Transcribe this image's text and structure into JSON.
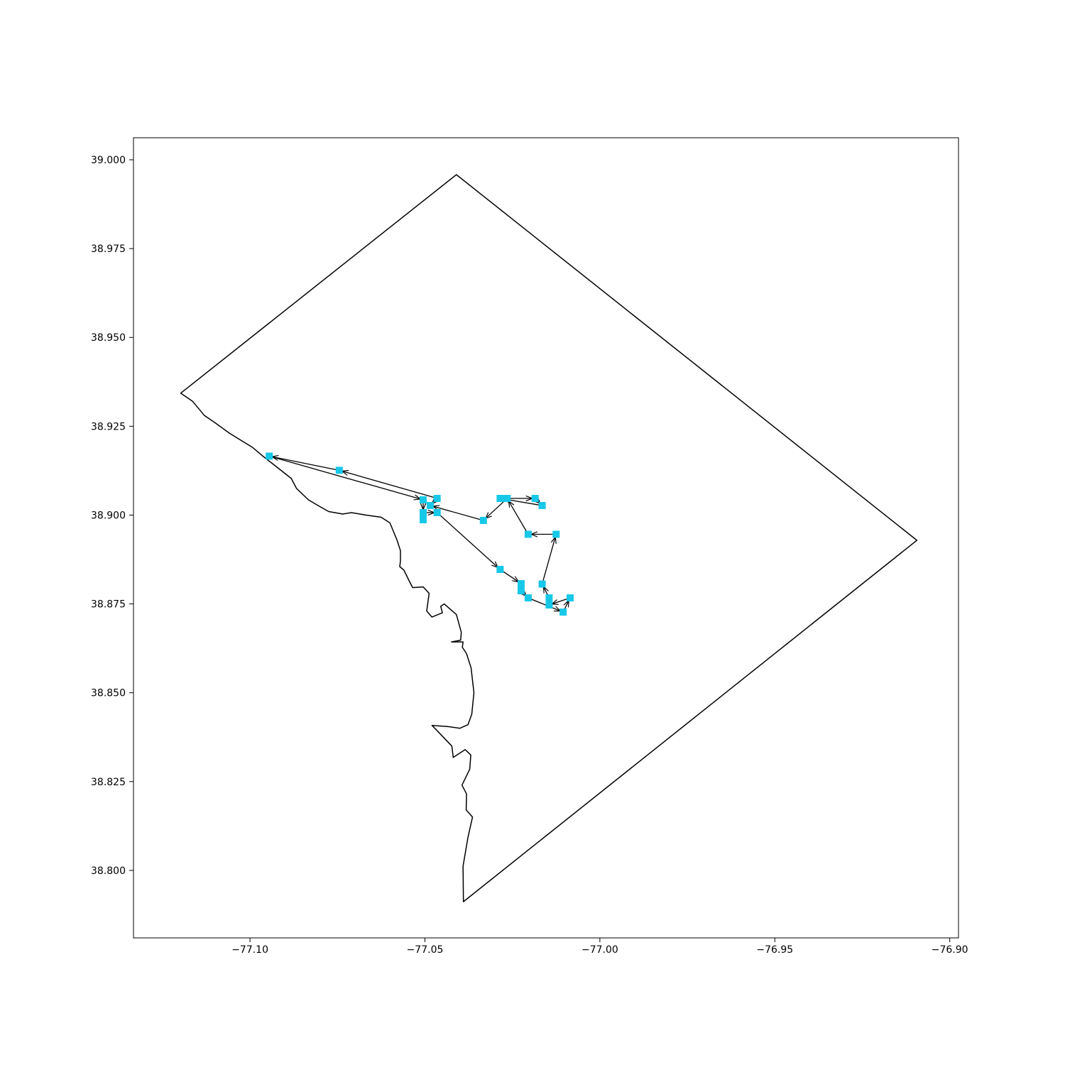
{
  "chart_data": {
    "type": "scatter",
    "title": "",
    "xlabel": "",
    "ylabel": "",
    "xlim": [
      -77.1333,
      -76.8975
    ],
    "ylim": [
      38.781,
      39.0062
    ],
    "grid": false,
    "legend": "none",
    "x_ticks": [
      {
        "value": -77.1,
        "label": "−77.10"
      },
      {
        "value": -77.05,
        "label": "−77.05"
      },
      {
        "value": -77.0,
        "label": "−77.00"
      },
      {
        "value": -76.95,
        "label": "−76.95"
      },
      {
        "value": -76.9,
        "label": "−76.90"
      }
    ],
    "y_ticks": [
      {
        "value": 39.0,
        "label": "39.000"
      },
      {
        "value": 38.975,
        "label": "38.975"
      },
      {
        "value": 38.95,
        "label": "38.950"
      },
      {
        "value": 38.925,
        "label": "38.925"
      },
      {
        "value": 38.9,
        "label": "38.900"
      },
      {
        "value": 38.875,
        "label": "38.875"
      },
      {
        "value": 38.85,
        "label": "38.850"
      },
      {
        "value": 38.825,
        "label": "38.825"
      },
      {
        "value": 38.8,
        "label": "38.800"
      }
    ],
    "boundary_polygon": [
      [
        -77.1198,
        38.9343
      ],
      [
        -77.041,
        38.9958
      ],
      [
        -76.9094,
        38.8929
      ],
      [
        -77.039,
        38.7912
      ],
      [
        -77.0391,
        38.8012
      ],
      [
        -77.0377,
        38.8093
      ],
      [
        -77.0364,
        38.815
      ],
      [
        -77.0382,
        38.817
      ],
      [
        -77.0381,
        38.8215
      ],
      [
        -77.0394,
        38.824
      ],
      [
        -77.0372,
        38.8285
      ],
      [
        -77.0369,
        38.8325
      ],
      [
        -77.0385,
        38.834
      ],
      [
        -77.0419,
        38.8318
      ],
      [
        -77.0423,
        38.835
      ],
      [
        -77.0467,
        38.8395
      ],
      [
        -77.048,
        38.8408
      ],
      [
        -77.0436,
        38.8405
      ],
      [
        -77.04,
        38.84
      ],
      [
        -77.0377,
        38.841
      ],
      [
        -77.0366,
        38.844
      ],
      [
        -77.036,
        38.85
      ],
      [
        -77.0368,
        38.857
      ],
      [
        -77.0381,
        38.861
      ],
      [
        -77.0393,
        38.8628
      ],
      [
        -77.0391,
        38.8643
      ],
      [
        -77.0424,
        38.8643
      ],
      [
        -77.0398,
        38.8648
      ],
      [
        -77.0396,
        38.867
      ],
      [
        -77.041,
        38.872
      ],
      [
        -77.0445,
        38.875
      ],
      [
        -77.0455,
        38.8743
      ],
      [
        -77.045,
        38.8725
      ],
      [
        -77.048,
        38.8713
      ],
      [
        -77.0495,
        38.873
      ],
      [
        -77.0488,
        38.878
      ],
      [
        -77.0505,
        38.8798
      ],
      [
        -77.0535,
        38.8796
      ],
      [
        -77.0545,
        38.8815
      ],
      [
        -77.056,
        38.8845
      ],
      [
        -77.0572,
        38.8855
      ],
      [
        -77.057,
        38.887
      ],
      [
        -77.057,
        38.89
      ],
      [
        -77.058,
        38.893
      ],
      [
        -77.06,
        38.8978
      ],
      [
        -77.0625,
        38.8994
      ],
      [
        -77.0668,
        38.9
      ],
      [
        -77.071,
        38.9007
      ],
      [
        -77.0735,
        38.9003
      ],
      [
        -77.0775,
        38.901
      ],
      [
        -77.0802,
        38.9025
      ],
      [
        -77.0833,
        38.9043
      ],
      [
        -77.0867,
        38.9075
      ],
      [
        -77.0882,
        38.9103
      ],
      [
        -77.0923,
        38.9135
      ],
      [
        -77.0962,
        38.9165
      ],
      [
        -77.0992,
        38.919
      ],
      [
        -77.1058,
        38.923
      ],
      [
        -77.11,
        38.926
      ],
      [
        -77.113,
        38.928
      ],
      [
        -77.1164,
        38.932
      ],
      [
        -77.1198,
        38.9343
      ]
    ],
    "stops": [
      [
        -77.0945,
        38.9166
      ],
      [
        -77.0745,
        38.9126
      ],
      [
        -77.0465,
        38.9047
      ],
      [
        -77.0505,
        38.9043
      ],
      [
        -77.0485,
        38.9027
      ],
      [
        -77.0505,
        38.9007
      ],
      [
        -77.0505,
        38.8987
      ],
      [
        -77.0465,
        38.9007
      ],
      [
        -77.0285,
        38.8847
      ],
      [
        -77.0225,
        38.8807
      ],
      [
        -77.0225,
        38.8787
      ],
      [
        -77.0205,
        38.8767
      ],
      [
        -77.0145,
        38.8767
      ],
      [
        -77.0145,
        38.8747
      ],
      [
        -77.0105,
        38.8727
      ],
      [
        -77.0085,
        38.8767
      ],
      [
        -77.0165,
        38.8806
      ],
      [
        -77.0125,
        38.8946
      ],
      [
        -77.0205,
        38.8946
      ],
      [
        -77.0265,
        38.9047
      ],
      [
        -77.0185,
        38.9047
      ],
      [
        -77.0165,
        38.9027
      ],
      [
        -77.0285,
        38.9047
      ],
      [
        -77.0333,
        38.8985
      ]
    ],
    "route_segments": [
      [
        [
          -77.0745,
          38.9126
        ],
        [
          -77.0945,
          38.9166
        ]
      ],
      [
        [
          -77.0465,
          38.9047
        ],
        [
          -77.0745,
          38.9126
        ]
      ],
      [
        [
          -77.0945,
          38.9166
        ],
        [
          -77.0505,
          38.9043
        ]
      ],
      [
        [
          -77.0465,
          38.9047
        ],
        [
          -77.0485,
          38.9027
        ]
      ],
      [
        [
          -77.0505,
          38.9043
        ],
        [
          -77.0505,
          38.9007
        ]
      ],
      [
        [
          -77.0505,
          38.9007
        ],
        [
          -77.0505,
          38.8987
        ]
      ],
      [
        [
          -77.0505,
          38.9007
        ],
        [
          -77.0465,
          38.9007
        ]
      ],
      [
        [
          -77.0465,
          38.9007
        ],
        [
          -77.0285,
          38.8847
        ]
      ],
      [
        [
          -77.0285,
          38.8847
        ],
        [
          -77.0225,
          38.8807
        ]
      ],
      [
        [
          -77.0225,
          38.8807
        ],
        [
          -77.0225,
          38.8787
        ]
      ],
      [
        [
          -77.0225,
          38.8787
        ],
        [
          -77.0205,
          38.8767
        ]
      ],
      [
        [
          -77.0205,
          38.8767
        ],
        [
          -77.0105,
          38.8727
        ]
      ],
      [
        [
          -77.0145,
          38.8747
        ],
        [
          -77.0145,
          38.8767
        ]
      ],
      [
        [
          -77.0145,
          38.8767
        ],
        [
          -77.0165,
          38.8806
        ]
      ],
      [
        [
          -77.0085,
          38.8767
        ],
        [
          -77.0145,
          38.8747
        ]
      ],
      [
        [
          -77.0105,
          38.8727
        ],
        [
          -77.0085,
          38.8767
        ]
      ],
      [
        [
          -77.0165,
          38.8806
        ],
        [
          -77.0125,
          38.8946
        ]
      ],
      [
        [
          -77.0125,
          38.8946
        ],
        [
          -77.0205,
          38.8946
        ]
      ],
      [
        [
          -77.0205,
          38.8946
        ],
        [
          -77.0265,
          38.9047
        ]
      ],
      [
        [
          -77.0285,
          38.9047
        ],
        [
          -77.0185,
          38.9047
        ]
      ],
      [
        [
          -77.0165,
          38.9027
        ],
        [
          -77.0285,
          38.9047
        ]
      ],
      [
        [
          -77.0265,
          38.9047
        ],
        [
          -77.0333,
          38.8985
        ]
      ],
      [
        [
          -77.0333,
          38.8985
        ],
        [
          -77.0485,
          38.9027
        ]
      ],
      [
        [
          -77.0185,
          38.9047
        ],
        [
          -77.0165,
          38.9027
        ]
      ]
    ],
    "colors": {
      "stop_marker": "#17c8e8",
      "route_line": "#000000",
      "boundary_line": "#000000",
      "axes_frame": "#000000"
    }
  }
}
